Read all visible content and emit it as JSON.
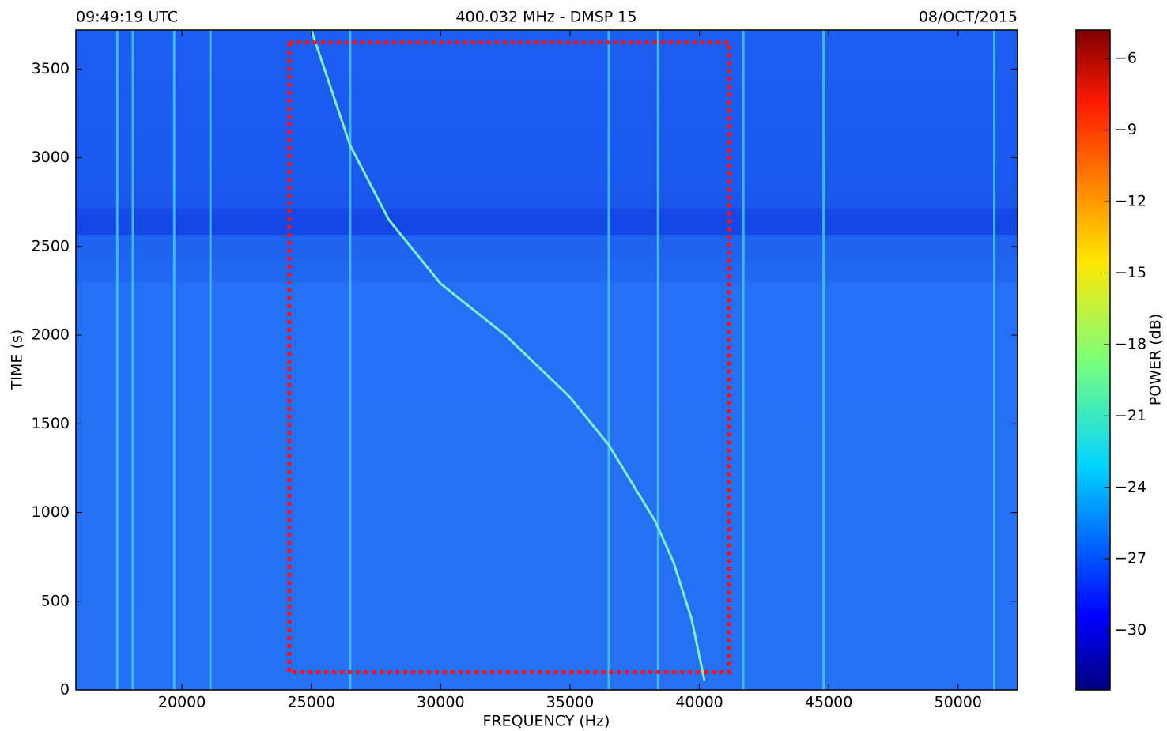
{
  "chart_data": {
    "type": "spectrogram",
    "title_left": "09:49:19 UTC",
    "title": "400.032 MHz - DMSP 15",
    "title_right": "08/OCT/2015",
    "xlabel": "FREQUENCY (Hz)",
    "ylabel": "TIME (s)",
    "xlim": [
      15900,
      52300
    ],
    "ylim": [
      0,
      3720
    ],
    "xticks": [
      20000,
      25000,
      30000,
      35000,
      40000,
      45000,
      50000
    ],
    "yticks": [
      0,
      500,
      1000,
      1500,
      2000,
      2500,
      3000,
      3500
    ],
    "series": [
      {
        "color": "#7ef0c0",
        "x": [
          25000,
          26500,
          28000,
          30000,
          32500,
          35000,
          36500,
          38300,
          39000,
          39700,
          40200
        ],
        "y": [
          3720,
          3070,
          2650,
          2290,
          2000,
          1650,
          1380,
          950,
          720,
          400,
          50
        ]
      }
    ],
    "carriers": {
      "color": "#45c8f2",
      "x": [
        17500,
        18100,
        19700,
        21100,
        26500,
        36500,
        38400,
        41700,
        44800,
        51400
      ]
    },
    "box": {
      "color": "#ff1010",
      "x": [
        24150,
        41150
      ],
      "y": [
        100,
        3650
      ]
    },
    "colorbar": {
      "label": "POWER (dB)",
      "colormap": "jet",
      "lim": [
        -32.5,
        -4.8
      ],
      "ticks": [
        {
          "value": -6,
          "label": "−6"
        },
        {
          "value": -9,
          "label": "−9"
        },
        {
          "value": -12,
          "label": "−12"
        },
        {
          "value": -15,
          "label": "−15"
        },
        {
          "value": -18,
          "label": "−18"
        },
        {
          "value": -21,
          "label": "−21"
        },
        {
          "value": -24,
          "label": "−24"
        },
        {
          "value": -27,
          "label": "−27"
        },
        {
          "value": -30,
          "label": "−30"
        }
      ]
    }
  }
}
